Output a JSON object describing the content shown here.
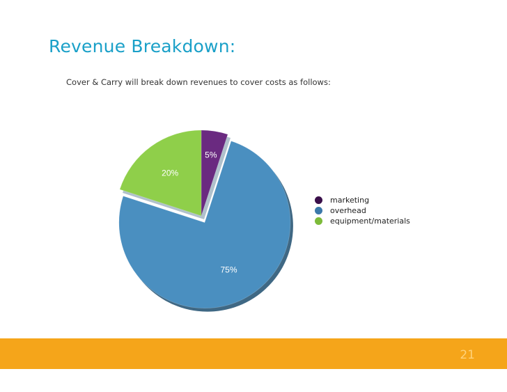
{
  "slide": {
    "title": "Revenue Breakdown:",
    "subtitle": "Cover & Carry will break down revenues to cover costs as follows:",
    "page_number": "21"
  },
  "colors": {
    "title": "#1aa0c8",
    "footer_bar": "#f5a51a"
  },
  "chart_data": {
    "type": "pie",
    "slices": [
      {
        "label": "marketing",
        "value": 5,
        "display": "5%",
        "color": "#6a2a80",
        "legend_color": "#3a0f4a"
      },
      {
        "label": "overhead",
        "value": 75,
        "display": "75%",
        "color": "#4a8fc0",
        "legend_color": "#3b79aa"
      },
      {
        "label": "equipment/materials",
        "value": 20,
        "display": "20%",
        "color": "#8fcf4a",
        "legend_color": "#7dbb3a"
      }
    ],
    "legend_position": "right",
    "exploded": "overhead",
    "style": "3d"
  }
}
